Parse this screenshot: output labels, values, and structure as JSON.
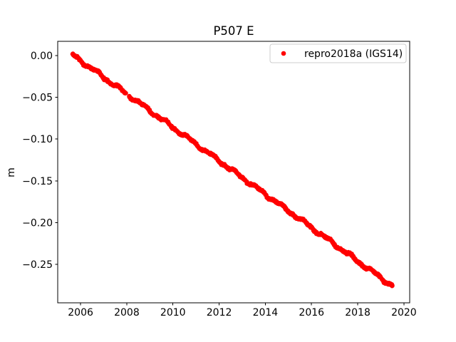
{
  "figure": {
    "background": "#ffffff"
  },
  "chart_data": {
    "type": "scatter",
    "title": "P507 E",
    "xlabel": "",
    "ylabel": "m",
    "xlim": [
      2005.01,
      2020.25
    ],
    "ylim": [
      -0.296,
      0.017
    ],
    "xticks": [
      2006,
      2008,
      2010,
      2012,
      2014,
      2016,
      2018,
      2020
    ],
    "xtick_labels": [
      "2006",
      "2008",
      "2010",
      "2012",
      "2014",
      "2016",
      "2018",
      "2020"
    ],
    "yticks": [
      0.0,
      -0.05,
      -0.1,
      -0.15,
      -0.2,
      -0.25
    ],
    "ytick_labels": [
      "0.00",
      "−0.05",
      "−0.10",
      "−0.15",
      "−0.20",
      "−0.25"
    ],
    "grid": false,
    "legend": {
      "position": "upper right",
      "border_color": "#cccccc",
      "background": "#ffffff"
    },
    "series": [
      {
        "name": "repro2018a (IGS14)",
        "color": "#ff0000",
        "marker": "dot",
        "trend": {
          "start_year": 2005.65,
          "start_value": 0.001,
          "end_year": 2019.52,
          "end_value": -0.2764,
          "slope_m_per_year": -0.02
        },
        "seasonal_wiggle_amplitude_m": 0.002,
        "scatter_band_m": 0.004,
        "gaps_year": [
          [
            2007.97,
            2008.09
          ]
        ],
        "points_sample": [
          [
            2005.65,
            0.001
          ],
          [
            2006.0,
            -0.006
          ],
          [
            2006.5,
            -0.016
          ],
          [
            2007.0,
            -0.026
          ],
          [
            2007.5,
            -0.036
          ],
          [
            2008.0,
            -0.046
          ],
          [
            2008.5,
            -0.056
          ],
          [
            2009.0,
            -0.066
          ],
          [
            2009.5,
            -0.076
          ],
          [
            2010.0,
            -0.086
          ],
          [
            2010.5,
            -0.096
          ],
          [
            2011.0,
            -0.106
          ],
          [
            2011.5,
            -0.116
          ],
          [
            2012.0,
            -0.126
          ],
          [
            2012.5,
            -0.136
          ],
          [
            2013.0,
            -0.146
          ],
          [
            2013.5,
            -0.156
          ],
          [
            2014.0,
            -0.166
          ],
          [
            2014.5,
            -0.176
          ],
          [
            2015.0,
            -0.186
          ],
          [
            2015.5,
            -0.196
          ],
          [
            2016.0,
            -0.206
          ],
          [
            2016.5,
            -0.216
          ],
          [
            2017.0,
            -0.226
          ],
          [
            2017.5,
            -0.236
          ],
          [
            2018.0,
            -0.246
          ],
          [
            2018.5,
            -0.256
          ],
          [
            2019.0,
            -0.266
          ],
          [
            2019.5,
            -0.276
          ]
        ]
      }
    ]
  }
}
